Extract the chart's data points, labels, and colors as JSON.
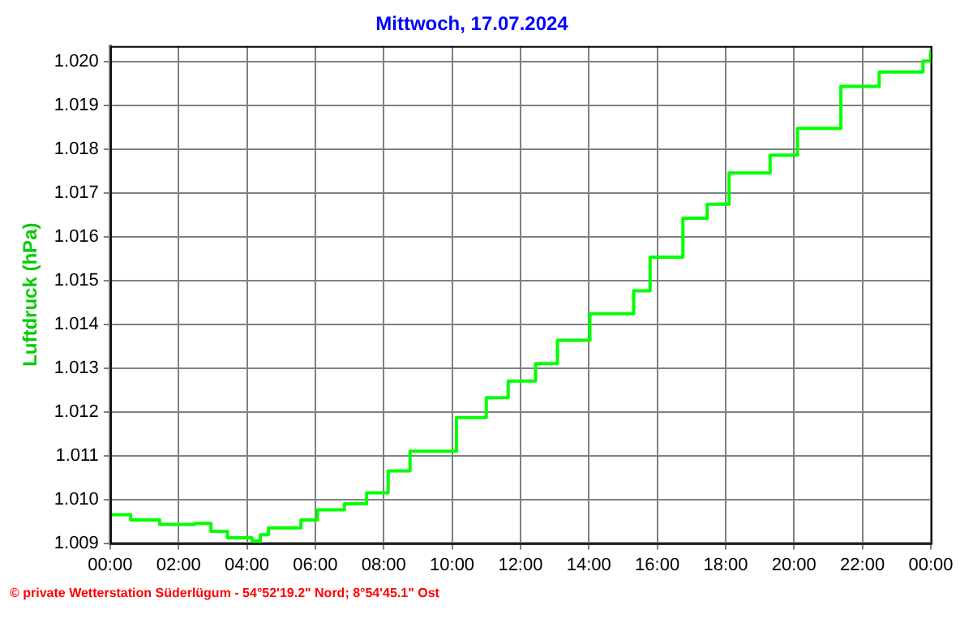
{
  "chart_data": {
    "type": "step",
    "title": "Mittwoch, 17.07.2024",
    "ylabel": "Luftdruck (hPa)",
    "annotations": [
      "© private Wetterstation Süderlügum - 54°52'19.2\" Nord; 8°54'45.1\" Ost"
    ],
    "x": [
      0,
      0.6,
      1.45,
      2.47,
      2.95,
      3.43,
      4.15,
      4.39,
      4.63,
      5.58,
      6.06,
      6.85,
      7.5,
      8.13,
      8.77,
      10.13,
      11.0,
      11.64,
      12.44,
      13.08,
      14.03,
      15.31,
      15.79,
      16.75,
      17.46,
      18.1,
      19.3,
      20.1,
      21.37,
      22.49,
      23.77,
      24
    ],
    "series": [
      {
        "color": "#00ff00",
        "values": [
          1.00965,
          1.00953,
          1.00943,
          1.00945,
          1.00927,
          1.00912,
          1.00905,
          1.00919,
          1.00935,
          1.00953,
          1.00976,
          1.0099,
          1.01015,
          1.01065,
          1.0111,
          1.01187,
          1.01232,
          1.0127,
          1.0131,
          1.01363,
          1.01424,
          1.01476,
          1.01553,
          1.01642,
          1.01674,
          1.01745,
          1.01786,
          1.01847,
          1.01943,
          1.01976,
          1.02001,
          1.02027
        ]
      }
    ],
    "xlim": [
      0,
      24
    ],
    "xticks": [
      {
        "value": 0,
        "label": "00:00"
      },
      {
        "value": 2,
        "label": "02:00"
      },
      {
        "value": 4,
        "label": "04:00"
      },
      {
        "value": 6,
        "label": "06:00"
      },
      {
        "value": 8,
        "label": "08:00"
      },
      {
        "value": 10,
        "label": "10:00"
      },
      {
        "value": 12,
        "label": "12:00"
      },
      {
        "value": 14,
        "label": "14:00"
      },
      {
        "value": 16,
        "label": "16:00"
      },
      {
        "value": 18,
        "label": "18:00"
      },
      {
        "value": 20,
        "label": "20:00"
      },
      {
        "value": 22,
        "label": "22:00"
      },
      {
        "value": 24,
        "label": "00:00"
      }
    ],
    "ylim": [
      1.009,
      1.02035
    ],
    "yticks": [
      1.009,
      {
        "value": 1.01,
        "label": "1.010"
      },
      1.011,
      1.012,
      1.013,
      1.014,
      1.015,
      1.016,
      1.017,
      1.018,
      1.019,
      {
        "value": 1.02,
        "label": "1.020"
      }
    ],
    "grid": true,
    "legend": false,
    "marker": "none",
    "line_style": "solid"
  }
}
